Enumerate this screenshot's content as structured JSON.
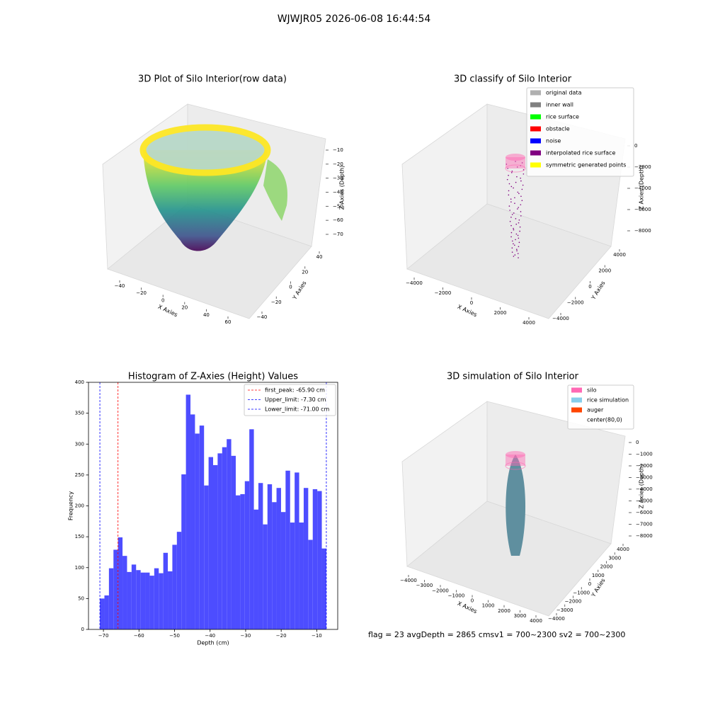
{
  "title": "WJWJR05 2026-06-08 16:44:54",
  "footer": "flag = 23  avgDepth = 2865 cmsv1 = 700~2300  sv2 = 700~2300",
  "chart_data": [
    {
      "type": "scatter3d",
      "title": "3D Plot of Silo Interior(row data)",
      "xlabel": "X Axies",
      "ylabel": "Y Axies",
      "zlabel": "Z Axies (Depth)",
      "xticks": [
        {
          "value": -40,
          "label": "−40"
        },
        {
          "value": -20,
          "label": "−20"
        },
        0,
        20,
        40,
        60
      ],
      "yticks": [
        {
          "value": -40,
          "label": "−40"
        },
        {
          "value": -20,
          "label": "−20"
        },
        0,
        20,
        40
      ],
      "zticks": [
        {
          "value": -10,
          "label": "−10"
        },
        {
          "value": -20,
          "label": "−20"
        },
        {
          "value": -30,
          "label": "−30"
        },
        {
          "value": -40,
          "label": "−40"
        },
        {
          "value": -50,
          "label": "−50"
        },
        {
          "value": -60,
          "label": "−60"
        },
        {
          "value": -70,
          "label": "−70"
        }
      ]
    },
    {
      "type": "scatter3d",
      "title": "3D classify of Silo Interior",
      "xlabel": "X Axies",
      "ylabel": "Y Axies",
      "zlabel": "Z Axies (Depth)",
      "xticks": [
        {
          "value": -4000,
          "label": "−4000"
        },
        {
          "value": -2000,
          "label": "−2000"
        },
        0,
        2000,
        4000
      ],
      "yticks": [
        {
          "value": -4000,
          "label": "−4000"
        },
        {
          "value": -2000,
          "label": "−2000"
        },
        0,
        2000,
        4000
      ],
      "zticks": [
        {
          "value": -8000,
          "label": "−8000"
        },
        {
          "value": -6000,
          "label": "−6000"
        },
        {
          "value": -4000,
          "label": "−4000"
        },
        {
          "value": -2000,
          "label": "−2000"
        },
        0
      ],
      "legend": [
        {
          "name": "original data",
          "color": "#b0b0b0"
        },
        {
          "name": "inner wall",
          "color": "#808080"
        },
        {
          "name": "rice surface",
          "color": "#00ff00"
        },
        {
          "name": "obstacle",
          "color": "#ff0000"
        },
        {
          "name": "noise",
          "color": "#0000ff"
        },
        {
          "name": "interpolated rice surface",
          "color": "#800080"
        },
        {
          "name": "symmetric generated points",
          "color": "#ffff00"
        }
      ]
    },
    {
      "type": "histogram",
      "title": "Histogram of Z-Axies (Height) Values",
      "xlabel": "Depth (cm)",
      "ylabel": "Frequency",
      "color": "#4d4dff",
      "bins": [
        -71,
        -69.726,
        -68.452,
        -67.178,
        -65.904,
        -64.63,
        -63.356,
        -62.082,
        -60.808,
        -59.534,
        -58.26,
        -56.986,
        -55.712,
        -54.438,
        -53.164,
        -51.89,
        -50.616,
        -49.342,
        -48.068,
        -46.794,
        -45.52,
        -44.246,
        -42.972,
        -41.698,
        -40.424,
        -39.15,
        -37.876,
        -36.602,
        -35.328,
        -34.054,
        -32.78,
        -31.506,
        -30.232,
        -28.958,
        -27.684,
        -26.41,
        -25.136,
        -23.862,
        -22.588,
        -21.314,
        -20.04,
        -18.766,
        -17.492,
        -16.218,
        -14.944,
        -13.67,
        -12.396,
        -11.122,
        -9.848,
        -8.574,
        -7.3
      ],
      "values": [
        50,
        55,
        99,
        129,
        149,
        119,
        93,
        105,
        96,
        92,
        92,
        87,
        99,
        91,
        124,
        94,
        137,
        158,
        251,
        380,
        348,
        317,
        330,
        233,
        279,
        266,
        285,
        295,
        308,
        281,
        217,
        219,
        240,
        324,
        194,
        237,
        170,
        235,
        206,
        229,
        190,
        257,
        173,
        254,
        173,
        229,
        145,
        227,
        224,
        131
      ],
      "xlim": [
        -74.2,
        -4.1
      ],
      "ylim": [
        0,
        400
      ],
      "xticks": [
        {
          "value": -70,
          "label": "−70"
        },
        {
          "value": -60,
          "label": "−60"
        },
        {
          "value": -50,
          "label": "−50"
        },
        {
          "value": -40,
          "label": "−40"
        },
        {
          "value": -30,
          "label": "−30"
        },
        {
          "value": -20,
          "label": "−20"
        },
        {
          "value": -10,
          "label": "−10"
        }
      ],
      "yticks": [
        0,
        50,
        100,
        150,
        200,
        250,
        300,
        350,
        400
      ],
      "lines": [
        {
          "label": "first_peak: -65.90 cm",
          "value": -65.9,
          "color": "#ff0000"
        },
        {
          "label": "Upper_limit: -7.30 cm",
          "value": -7.3,
          "color": "#0000ff"
        },
        {
          "label": "Lower_limit: -71.00 cm",
          "value": -71.0,
          "color": "#0000ff"
        }
      ]
    },
    {
      "type": "scatter3d",
      "title": "3D simulation of Silo Interior",
      "xlabel": "X Axies",
      "ylabel": "Y Axies",
      "zlabel": "Z Axies (Depth)",
      "xticks": [
        {
          "value": -4000,
          "label": "−4000"
        },
        {
          "value": -3000,
          "label": "−3000"
        },
        {
          "value": -2000,
          "label": "−2000"
        },
        {
          "value": -1000,
          "label": "−1000"
        },
        0,
        1000,
        2000,
        3000,
        4000
      ],
      "yticks": [
        {
          "value": -4000,
          "label": "−4000"
        },
        {
          "value": -3000,
          "label": "−3000"
        },
        {
          "value": -2000,
          "label": "−2000"
        },
        {
          "value": -1000,
          "label": "−1000"
        },
        0,
        1000,
        2000,
        3000,
        4000
      ],
      "zticks": [
        0,
        {
          "value": -1000,
          "label": "−1000"
        },
        {
          "value": -2000,
          "label": "−2000"
        },
        {
          "value": -3000,
          "label": "−3000"
        },
        {
          "value": -4000,
          "label": "−4000"
        },
        {
          "value": -5000,
          "label": "−5000"
        },
        {
          "value": -6000,
          "label": "−6000"
        },
        {
          "value": -7000,
          "label": "−7000"
        },
        {
          "value": -8000,
          "label": "−8000"
        }
      ],
      "legend": [
        {
          "name": "silo",
          "color": "#ff69b4"
        },
        {
          "name": "rice simulation",
          "color": "#87ceeb"
        },
        {
          "name": "auger",
          "color": "#ff4500"
        },
        {
          "name": "center(80,0)",
          "color": "#ffffff"
        }
      ]
    }
  ]
}
